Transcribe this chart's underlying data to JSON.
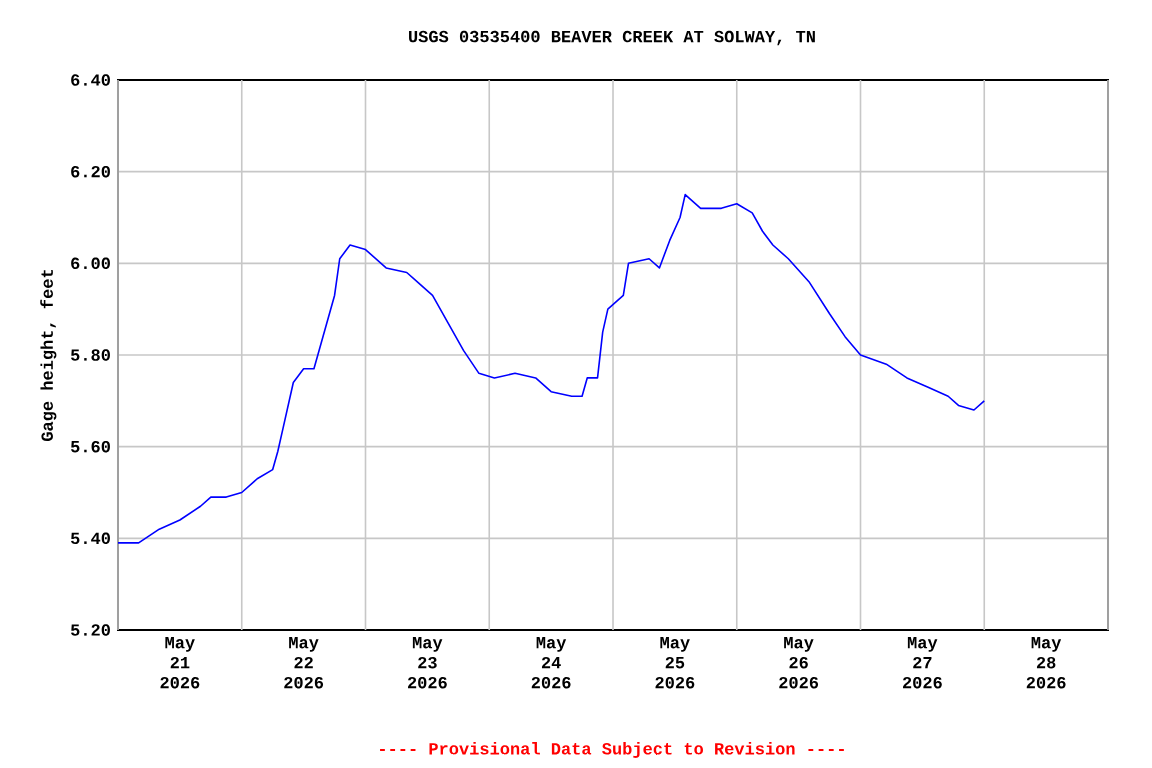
{
  "chart_data": {
    "type": "line",
    "title": "USGS 03535400 BEAVER CREEK AT SOLWAY, TN",
    "ylabel": "Gage height, feet",
    "annotations": [
      "---- Provisional Data Subject to Revision ----"
    ],
    "x": [
      "2026-05-21T00:00",
      "2026-05-21T04:00",
      "2026-05-21T08:00",
      "2026-05-21T12:00",
      "2026-05-21T16:00",
      "2026-05-21T18:00",
      "2026-05-21T21:00",
      "2026-05-22T00:00",
      "2026-05-22T03:00",
      "2026-05-22T06:00",
      "2026-05-22T07:00",
      "2026-05-22T08:00",
      "2026-05-22T10:00",
      "2026-05-22T12:00",
      "2026-05-22T14:00",
      "2026-05-22T16:00",
      "2026-05-22T18:00",
      "2026-05-22T19:00",
      "2026-05-22T21:00",
      "2026-05-23T00:00",
      "2026-05-23T04:00",
      "2026-05-23T08:00",
      "2026-05-23T10:00",
      "2026-05-23T13:00",
      "2026-05-23T16:00",
      "2026-05-23T19:00",
      "2026-05-23T22:00",
      "2026-05-24T01:00",
      "2026-05-24T05:00",
      "2026-05-24T09:00",
      "2026-05-24T12:00",
      "2026-05-24T16:00",
      "2026-05-24T18:00",
      "2026-05-24T19:00",
      "2026-05-24T21:00",
      "2026-05-24T22:00",
      "2026-05-24T23:00",
      "2026-05-25T02:00",
      "2026-05-25T03:00",
      "2026-05-25T07:00",
      "2026-05-25T09:00",
      "2026-05-25T11:00",
      "2026-05-25T13:00",
      "2026-05-25T14:00",
      "2026-05-25T17:00",
      "2026-05-25T21:00",
      "2026-05-26T00:00",
      "2026-05-26T03:00",
      "2026-05-26T05:00",
      "2026-05-26T07:00",
      "2026-05-26T10:00",
      "2026-05-26T14:00",
      "2026-05-26T18:00",
      "2026-05-26T21:00",
      "2026-05-27T00:00",
      "2026-05-27T05:00",
      "2026-05-27T09:00",
      "2026-05-27T13:00",
      "2026-05-27T17:00",
      "2026-05-27T19:00",
      "2026-05-27T22:00",
      "2026-05-28T00:00"
    ],
    "series": [
      {
        "color": "#0000ff",
        "values": [
          5.39,
          5.39,
          5.42,
          5.44,
          5.47,
          5.49,
          5.49,
          5.5,
          5.53,
          5.55,
          5.59,
          5.64,
          5.74,
          5.77,
          5.77,
          5.85,
          5.93,
          6.01,
          6.04,
          6.03,
          5.99,
          5.98,
          5.96,
          5.93,
          5.87,
          5.81,
          5.76,
          5.75,
          5.76,
          5.75,
          5.72,
          5.71,
          5.71,
          5.75,
          5.75,
          5.85,
          5.9,
          5.93,
          6.0,
          6.01,
          5.99,
          6.05,
          6.1,
          6.15,
          6.12,
          6.12,
          6.13,
          6.11,
          6.07,
          6.04,
          6.01,
          5.96,
          5.89,
          5.84,
          5.8,
          5.78,
          5.75,
          5.73,
          5.71,
          5.69,
          5.68,
          5.7
        ]
      }
    ],
    "xlim": [
      "2026-05-21T00:00",
      "2026-05-29T00:00"
    ],
    "xticks": [
      {
        "value": "2026-05-21T00:00",
        "label": null
      },
      {
        "value": "2026-05-21T12:00",
        "label": "May 21 2026"
      },
      {
        "value": "2026-05-22T00:00",
        "label": null
      },
      {
        "value": "2026-05-22T12:00",
        "label": "May 22 2026"
      },
      {
        "value": "2026-05-23T00:00",
        "label": null
      },
      {
        "value": "2026-05-23T12:00",
        "label": "May 23 2026"
      },
      {
        "value": "2026-05-24T00:00",
        "label": null
      },
      {
        "value": "2026-05-24T12:00",
        "label": "May 24 2026"
      },
      {
        "value": "2026-05-25T00:00",
        "label": null
      },
      {
        "value": "2026-05-25T12:00",
        "label": "May 25 2026"
      },
      {
        "value": "2026-05-26T00:00",
        "label": null
      },
      {
        "value": "2026-05-26T12:00",
        "label": "May 26 2026"
      },
      {
        "value": "2026-05-27T00:00",
        "label": null
      },
      {
        "value": "2026-05-27T12:00",
        "label": "May 27 2026"
      },
      {
        "value": "2026-05-28T00:00",
        "label": null
      },
      {
        "value": "2026-05-28T12:00",
        "label": "May 28 2026"
      },
      {
        "value": "2026-05-29T00:00",
        "label": null
      }
    ],
    "ylim": [
      5.2,
      6.4
    ],
    "yticks": [
      {
        "value": 5.2,
        "label": "5.20"
      },
      {
        "value": 5.4,
        "label": "5.40"
      },
      {
        "value": 5.6,
        "label": "5.60"
      },
      {
        "value": 5.8,
        "label": "5.80"
      },
      {
        "value": 6.0,
        "label": "6.00"
      },
      {
        "value": 6.2,
        "label": "6.20"
      },
      {
        "value": 6.4,
        "label": "6.40"
      }
    ],
    "grid": true,
    "marker": "none",
    "line_style": "solid"
  }
}
